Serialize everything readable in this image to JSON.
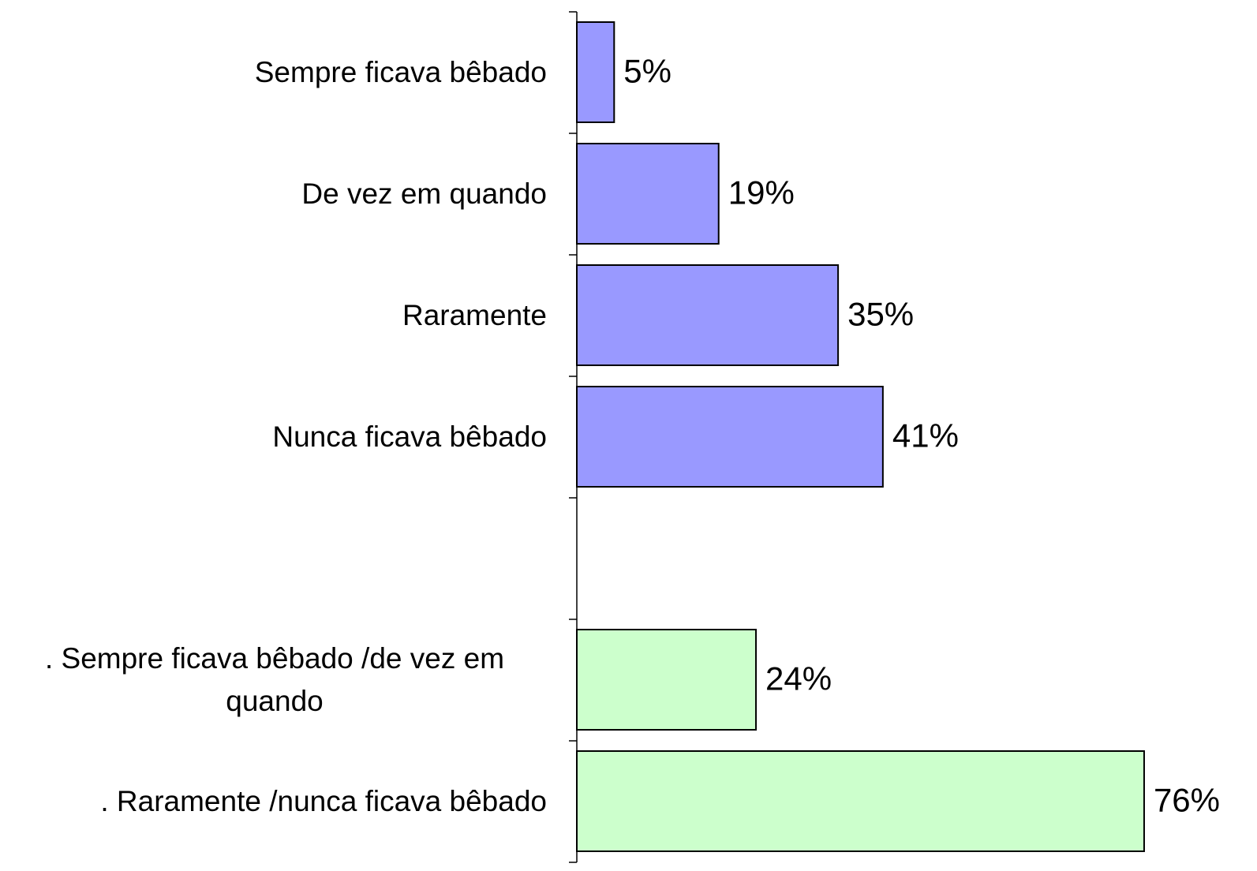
{
  "chart_data": {
    "type": "bar",
    "orientation": "horizontal",
    "categories": [
      "Sempre ficava bêbado",
      "De vez em quando",
      "Raramente",
      "Nunca ficava bêbado",
      null,
      ". Sempre ficava bêbado /de vez em quando",
      ". Raramente /nunca ficava bêbado"
    ],
    "values": [
      5,
      19,
      35,
      41,
      null,
      24,
      76
    ],
    "value_labels": [
      "5%",
      "19%",
      "35%",
      "41%",
      null,
      "24%",
      "76%"
    ],
    "colors": [
      "#9999ff",
      "#9999ff",
      "#9999ff",
      "#9999ff",
      null,
      "#ccffcc",
      "#ccffcc"
    ]
  }
}
